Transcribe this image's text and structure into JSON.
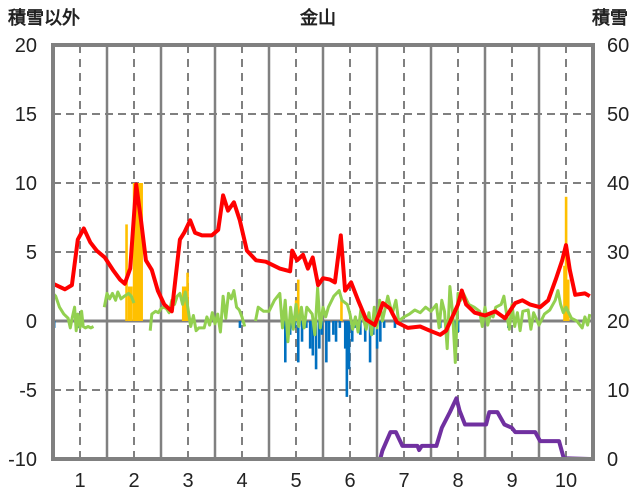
{
  "chart_data": {
    "type": "line",
    "title": "金山",
    "ylabel_left": "積雪以外",
    "ylabel_right": "積雪",
    "xlim": [
      0.5,
      10.5
    ],
    "ylim_left": [
      -10,
      20
    ],
    "ylim_right": [
      0,
      60
    ],
    "x_ticks": [
      "1",
      "2",
      "3",
      "4",
      "5",
      "6",
      "7",
      "8",
      "9",
      "10"
    ],
    "y_ticks_left": [
      "20",
      "15",
      "10",
      "5",
      "0",
      "-5",
      "-10"
    ],
    "y_ticks_right": [
      "60",
      "50",
      "40",
      "30",
      "20",
      "10",
      "0"
    ],
    "colors": {
      "red": "#FF0000",
      "green": "#92D050",
      "purple": "#7030A0",
      "yellow": "#FFC000",
      "blue": "#0070C0"
    },
    "series": [
      {
        "name": "red",
        "axis": "left",
        "points": [
          [
            0.5,
            2.7
          ],
          [
            0.72,
            2.3
          ],
          [
            0.85,
            2.6
          ],
          [
            0.96,
            5.9
          ],
          [
            1.07,
            6.7
          ],
          [
            1.19,
            5.7
          ],
          [
            1.31,
            5.1
          ],
          [
            1.46,
            4.6
          ],
          [
            1.61,
            3.7
          ],
          [
            1.74,
            3.0
          ],
          [
            1.83,
            2.7
          ],
          [
            1.93,
            3.8
          ],
          [
            2.04,
            9.9
          ],
          [
            2.13,
            7.3
          ],
          [
            2.22,
            4.4
          ],
          [
            2.33,
            3.7
          ],
          [
            2.44,
            2.2
          ],
          [
            2.56,
            1.2
          ],
          [
            2.7,
            0.7
          ],
          [
            2.85,
            5.9
          ],
          [
            2.93,
            6.4
          ],
          [
            3.04,
            7.3
          ],
          [
            3.13,
            6.4
          ],
          [
            3.26,
            6.2
          ],
          [
            3.44,
            6.2
          ],
          [
            3.56,
            6.6
          ],
          [
            3.65,
            9.1
          ],
          [
            3.74,
            8.0
          ],
          [
            3.85,
            8.6
          ],
          [
            3.96,
            7.3
          ],
          [
            4.09,
            5.1
          ],
          [
            4.26,
            4.4
          ],
          [
            4.44,
            4.3
          ],
          [
            4.7,
            3.8
          ],
          [
            4.89,
            3.6
          ],
          [
            4.93,
            5.1
          ],
          [
            5.02,
            4.4
          ],
          [
            5.13,
            4.8
          ],
          [
            5.22,
            3.8
          ],
          [
            5.31,
            4.6
          ],
          [
            5.41,
            2.6
          ],
          [
            5.5,
            3.1
          ],
          [
            5.63,
            3.0
          ],
          [
            5.72,
            2.8
          ],
          [
            5.83,
            6.2
          ],
          [
            5.91,
            2.2
          ],
          [
            6.02,
            2.8
          ],
          [
            6.15,
            1.5
          ],
          [
            6.3,
            0.1
          ],
          [
            6.46,
            -0.3
          ],
          [
            6.61,
            1.3
          ],
          [
            6.74,
            0.9
          ],
          [
            6.87,
            -0.1
          ],
          [
            7.07,
            -0.5
          ],
          [
            7.3,
            -0.4
          ],
          [
            7.48,
            -0.7
          ],
          [
            7.67,
            -1.0
          ],
          [
            7.78,
            -0.7
          ],
          [
            8.0,
            1.2
          ],
          [
            8.07,
            2.2
          ],
          [
            8.15,
            1.2
          ],
          [
            8.31,
            0.6
          ],
          [
            8.5,
            0.4
          ],
          [
            8.69,
            0.7
          ],
          [
            8.87,
            0.2
          ],
          [
            9.06,
            1.3
          ],
          [
            9.19,
            1.5
          ],
          [
            9.33,
            1.2
          ],
          [
            9.52,
            1.0
          ],
          [
            9.67,
            1.5
          ],
          [
            9.81,
            3.0
          ],
          [
            9.93,
            4.4
          ],
          [
            10.0,
            5.5
          ],
          [
            10.07,
            3.7
          ],
          [
            10.17,
            1.9
          ],
          [
            10.35,
            2.0
          ],
          [
            10.44,
            1.8
          ]
        ]
      },
      {
        "name": "green",
        "axis": "left",
        "points": [
          [
            0.5,
            2.0
          ],
          [
            0.55,
            1.8
          ],
          [
            0.62,
            1.0
          ],
          [
            0.7,
            0.5
          ],
          [
            0.78,
            0.2
          ],
          [
            0.82,
            -0.5
          ],
          [
            0.86,
            0.3
          ],
          [
            0.9,
            1.0
          ],
          [
            0.93,
            -0.7
          ],
          [
            0.96,
            0.5
          ],
          [
            1.0,
            -0.5
          ],
          [
            1.03,
            0.7
          ],
          [
            1.06,
            -0.4
          ],
          [
            1.1,
            -0.5
          ],
          [
            1.15,
            -0.4
          ],
          [
            1.2,
            -0.5
          ],
          [
            1.25,
            -0.4
          ],
          null,
          [
            1.45,
            1.0
          ],
          [
            1.5,
            2.0
          ],
          [
            1.55,
            1.6
          ],
          [
            1.6,
            2.0
          ],
          [
            1.66,
            1.5
          ],
          [
            1.7,
            2.1
          ],
          [
            1.76,
            1.6
          ],
          [
            1.82,
            1.8
          ],
          [
            1.9,
            2.0
          ],
          [
            1.95,
            1.8
          ],
          [
            2.0,
            1.3
          ],
          null,
          [
            2.3,
            -0.7
          ],
          [
            2.33,
            0.5
          ],
          [
            2.4,
            0.7
          ],
          [
            2.45,
            0.6
          ],
          [
            2.5,
            0.9
          ],
          [
            2.55,
            1.0
          ],
          [
            2.6,
            0.9
          ],
          [
            2.65,
            0.6
          ],
          [
            2.7,
            1.5
          ],
          [
            2.75,
            1.2
          ],
          [
            2.8,
            1.8
          ],
          [
            2.85,
            2.0
          ],
          [
            2.9,
            1.2
          ],
          [
            2.95,
            2.1
          ],
          [
            3.0,
            0.9
          ],
          [
            3.05,
            -0.4
          ],
          [
            3.1,
            0.4
          ],
          [
            3.15,
            -0.7
          ],
          [
            3.2,
            -0.5
          ],
          [
            3.3,
            -0.5
          ],
          [
            3.35,
            0.3
          ],
          [
            3.4,
            -0.3
          ],
          [
            3.45,
            0.6
          ],
          [
            3.5,
            -0.2
          ],
          [
            3.55,
            0.5
          ],
          [
            3.6,
            -0.8
          ],
          [
            3.65,
            1.8
          ],
          [
            3.7,
            0.2
          ],
          [
            3.75,
            2.0
          ],
          [
            3.8,
            1.6
          ],
          [
            3.85,
            2.2
          ],
          [
            3.9,
            1.0
          ],
          [
            3.95,
            0.8
          ],
          [
            4.0,
            0.3
          ],
          [
            4.05,
            -0.4
          ],
          null,
          [
            4.25,
            0.0
          ],
          [
            4.3,
            1.0
          ],
          [
            4.4,
            0.7
          ],
          [
            4.5,
            0.7
          ],
          [
            4.6,
            1.5
          ],
          [
            4.7,
            2.0
          ],
          [
            4.75,
            -0.5
          ],
          [
            4.8,
            1.5
          ],
          [
            4.85,
            -1.5
          ],
          [
            4.9,
            1.0
          ],
          [
            4.95,
            -0.6
          ],
          [
            5.0,
            1.2
          ],
          [
            5.05,
            -0.4
          ],
          [
            5.1,
            1.0
          ],
          [
            5.15,
            -0.5
          ],
          [
            5.2,
            1.0
          ],
          [
            5.3,
            0.5
          ],
          [
            5.35,
            -1.0
          ],
          [
            5.4,
            2.4
          ],
          [
            5.45,
            -0.5
          ],
          [
            5.5,
            1.0
          ],
          [
            5.55,
            0.3
          ],
          [
            5.6,
            1.0
          ],
          [
            5.7,
            1.8
          ],
          [
            5.8,
            2.2
          ],
          [
            5.85,
            1.5
          ],
          [
            5.95,
            1.2
          ],
          [
            6.0,
            0.5
          ],
          [
            6.05,
            -0.6
          ],
          [
            6.1,
            0.3
          ],
          [
            6.15,
            -0.8
          ],
          [
            6.2,
            0.8
          ],
          [
            6.3,
            -0.6
          ],
          [
            6.35,
            0.6
          ],
          [
            6.4,
            -1.0
          ],
          [
            6.45,
            1.0
          ],
          [
            6.5,
            -0.5
          ],
          [
            6.55,
            1.5
          ],
          [
            6.6,
            0.0
          ],
          [
            6.7,
            1.8
          ],
          [
            6.78,
            0.5
          ],
          [
            6.85,
            1.5
          ],
          [
            6.9,
            0.0
          ],
          [
            7.0,
            0.3
          ],
          [
            7.1,
            0.5
          ],
          [
            7.2,
            0.8
          ],
          [
            7.3,
            0.6
          ],
          [
            7.4,
            1.0
          ],
          [
            7.5,
            0.7
          ],
          [
            7.6,
            1.2
          ],
          [
            7.65,
            -0.5
          ],
          [
            7.7,
            1.5
          ],
          [
            7.75,
            0.7
          ],
          [
            7.8,
            -2.0
          ],
          [
            7.85,
            2.5
          ],
          [
            7.9,
            0.6
          ],
          [
            7.95,
            -3.0
          ],
          [
            8.0,
            2.0
          ],
          [
            8.05,
            1.5
          ],
          [
            8.1,
            2.0
          ],
          [
            8.2,
            1.2
          ],
          [
            8.3,
            1.0
          ],
          [
            8.4,
            0.7
          ],
          [
            8.45,
            -0.4
          ],
          [
            8.5,
            1.0
          ],
          [
            8.55,
            -0.3
          ],
          [
            8.6,
            0.5
          ],
          [
            8.65,
            0.3
          ],
          [
            8.7,
            1.0
          ],
          [
            8.8,
            1.2
          ],
          [
            8.85,
            1.8
          ],
          [
            8.9,
            0.5
          ],
          [
            8.95,
            -0.6
          ],
          [
            9.0,
            1.2
          ],
          [
            9.05,
            -0.4
          ],
          [
            9.1,
            0.6
          ],
          [
            9.15,
            -0.7
          ],
          [
            9.2,
            0.7
          ],
          [
            9.3,
            0.8
          ],
          [
            9.35,
            -0.6
          ],
          [
            9.4,
            0.6
          ],
          [
            9.5,
            -0.3
          ],
          [
            9.6,
            0.5
          ],
          [
            9.7,
            0.8
          ],
          [
            9.8,
            1.5
          ],
          [
            9.85,
            2.2
          ],
          [
            9.9,
            1.2
          ],
          [
            9.95,
            0.6
          ],
          [
            10.0,
            1.0
          ],
          [
            10.1,
            0.2
          ],
          [
            10.2,
            0.0
          ],
          [
            10.3,
            -0.5
          ],
          [
            10.35,
            0.3
          ],
          [
            10.4,
            -0.3
          ],
          [
            10.44,
            0.5
          ]
        ]
      },
      {
        "name": "purple (積雪)",
        "axis": "right",
        "points": [
          [
            0.5,
            0
          ],
          [
            6.56,
            0
          ],
          [
            6.6,
            1.2
          ],
          [
            6.75,
            3.9
          ],
          [
            6.85,
            3.9
          ],
          [
            6.97,
            1.9
          ],
          [
            7.25,
            1.9
          ],
          [
            7.28,
            1.3
          ],
          [
            7.33,
            1.9
          ],
          [
            7.6,
            1.9
          ],
          [
            7.7,
            4.5
          ],
          [
            7.85,
            6.8
          ],
          [
            7.97,
            8.8
          ],
          [
            8.03,
            7.0
          ],
          [
            8.13,
            5.0
          ],
          [
            8.52,
            5.0
          ],
          [
            8.58,
            6.8
          ],
          [
            8.73,
            6.8
          ],
          [
            8.86,
            5.0
          ],
          [
            9.0,
            4.5
          ],
          [
            9.06,
            3.9
          ],
          [
            9.43,
            3.9
          ],
          [
            9.52,
            2.6
          ],
          [
            9.87,
            2.6
          ],
          [
            9.96,
            0.1
          ],
          [
            10.44,
            0
          ]
        ]
      }
    ],
    "bars": [
      {
        "name": "yellow",
        "axis": "left",
        "points": [
          [
            1.86,
            7
          ],
          [
            1.91,
            2.5
          ],
          [
            1.95,
            2.5
          ],
          [
            2.0,
            10
          ],
          [
            2.04,
            10
          ],
          [
            2.07,
            10
          ],
          [
            2.11,
            10
          ],
          [
            2.14,
            10
          ],
          [
            2.91,
            2.5
          ],
          [
            2.95,
            2.5
          ],
          [
            2.99,
            3.5
          ],
          [
            5.0,
            1.5
          ],
          [
            5.04,
            3
          ],
          [
            5.84,
            1.5
          ],
          [
            9.97,
            4
          ],
          [
            10.0,
            9
          ],
          [
            10.04,
            3
          ]
        ]
      },
      {
        "name": "blue",
        "axis": "left",
        "points": [
          [
            0.52,
            -0.5
          ],
          [
            0.96,
            -0.5
          ],
          [
            3.96,
            -0.5
          ],
          [
            4.8,
            -3
          ],
          [
            4.89,
            -1
          ],
          [
            4.98,
            -0.5
          ],
          [
            5.04,
            -3
          ],
          [
            5.11,
            -1.5
          ],
          [
            5.19,
            -0.5
          ],
          [
            5.26,
            -2
          ],
          [
            5.31,
            -2.5
          ],
          [
            5.37,
            -3.5
          ],
          [
            5.43,
            -2
          ],
          [
            5.48,
            -1
          ],
          [
            5.56,
            -3
          ],
          [
            5.61,
            -1.5
          ],
          [
            5.69,
            -1
          ],
          [
            5.74,
            -1.5
          ],
          [
            5.81,
            -0.5
          ],
          [
            5.91,
            -2
          ],
          [
            5.94,
            -5.5
          ],
          [
            5.98,
            -3.5
          ],
          [
            6.04,
            -1.5
          ],
          [
            6.09,
            -0.5
          ],
          [
            6.19,
            -1
          ],
          [
            6.28,
            -1.5
          ],
          [
            6.37,
            -3
          ],
          [
            6.43,
            -1
          ],
          [
            6.5,
            -2
          ],
          [
            6.56,
            -1.5
          ],
          [
            6.63,
            -0.5
          ],
          [
            6.83,
            -0.5
          ],
          [
            7.67,
            -0.5
          ],
          [
            7.96,
            -2
          ],
          [
            8.0,
            -0.8
          ],
          [
            8.93,
            -0.5
          ]
        ]
      }
    ],
    "grid": true
  }
}
